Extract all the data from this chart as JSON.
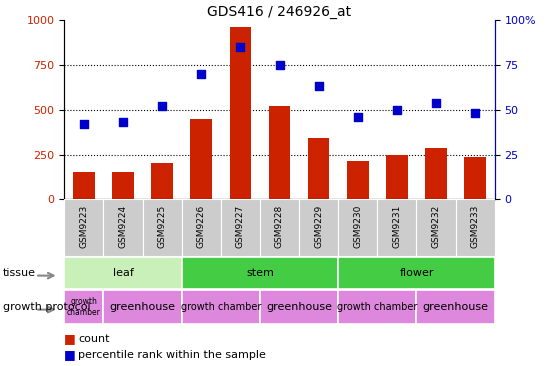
{
  "title": "GDS416 / 246926_at",
  "samples": [
    "GSM9223",
    "GSM9224",
    "GSM9225",
    "GSM9226",
    "GSM9227",
    "GSM9228",
    "GSM9229",
    "GSM9230",
    "GSM9231",
    "GSM9232",
    "GSM9233"
  ],
  "counts": [
    155,
    155,
    205,
    450,
    960,
    520,
    345,
    215,
    250,
    285,
    235
  ],
  "percentiles": [
    42,
    43,
    52,
    70,
    85,
    75,
    63,
    46,
    50,
    54,
    48
  ],
  "ylim_left": [
    0,
    1000
  ],
  "ylim_right": [
    0,
    100
  ],
  "yticks_left": [
    0,
    250,
    500,
    750,
    1000
  ],
  "yticks_right": [
    0,
    25,
    50,
    75,
    100
  ],
  "bar_color": "#cc2200",
  "dot_color": "#0000cc",
  "tissue_data": [
    {
      "label": "leaf",
      "start": 0,
      "end": 3,
      "color": "#c8f0b8"
    },
    {
      "label": "stem",
      "start": 3,
      "end": 7,
      "color": "#44cc44"
    },
    {
      "label": "flower",
      "start": 7,
      "end": 11,
      "color": "#44cc44"
    }
  ],
  "growth_data": [
    {
      "label": "growth\nchamber",
      "start": 0,
      "end": 1,
      "color": "#dd88dd",
      "fontsize": 5.5
    },
    {
      "label": "greenhouse",
      "start": 1,
      "end": 3,
      "color": "#dd88dd",
      "fontsize": 8
    },
    {
      "label": "growth chamber",
      "start": 3,
      "end": 5,
      "color": "#dd88dd",
      "fontsize": 7
    },
    {
      "label": "greenhouse",
      "start": 5,
      "end": 7,
      "color": "#dd88dd",
      "fontsize": 8
    },
    {
      "label": "growth chamber",
      "start": 7,
      "end": 9,
      "color": "#dd88dd",
      "fontsize": 7
    },
    {
      "label": "greenhouse",
      "start": 9,
      "end": 11,
      "color": "#dd88dd",
      "fontsize": 8
    }
  ],
  "legend_count_label": "count",
  "legend_pct_label": "percentile rank within the sample",
  "tissue_label": "tissue",
  "growth_label": "growth protocol",
  "sample_box_color": "#cccccc",
  "background_color": "#ffffff",
  "tick_label_color_left": "#cc2200",
  "tick_label_color_right": "#0000cc"
}
